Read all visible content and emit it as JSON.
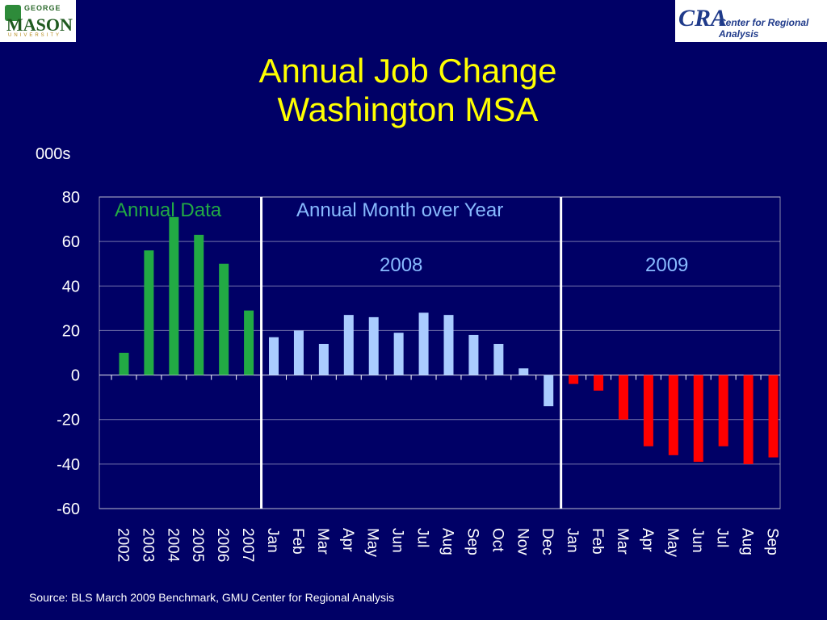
{
  "logos": {
    "left_small": "GEORGE",
    "left_big": "MASON",
    "left_uni": "UNIVERSITY",
    "right_mark": "CRA",
    "right_text": "Center for Regional Analysis"
  },
  "title_line1": "Annual Job Change",
  "title_line2": "Washington MSA",
  "unit_label": "000s",
  "source": "Source: BLS March 2009 Benchmark, GMU Center for Regional Analysis",
  "colors": {
    "annual": "#22aa44",
    "y2008": "#aaccff",
    "y2009": "#ff0000",
    "grid": "#ffffff",
    "text": "#ffffff"
  },
  "chart_data": {
    "type": "bar",
    "ylim": [
      -60,
      80
    ],
    "yticks": [
      80,
      60,
      40,
      20,
      0,
      -20,
      -40,
      -60
    ],
    "categories": [
      "2002",
      "2003",
      "2004",
      "2005",
      "2006",
      "2007",
      "Jan",
      "Feb",
      "Mar",
      "Apr",
      "May",
      "Jun",
      "Jul",
      "Aug",
      "Sep",
      "Oct",
      "Nov",
      "Dec",
      "Jan",
      "Feb",
      "Mar",
      "Apr",
      "May",
      "Jun",
      "Jul",
      "Aug",
      "Sep"
    ],
    "values": [
      10,
      56,
      71,
      63,
      50,
      29,
      17,
      20,
      14,
      27,
      26,
      19,
      28,
      27,
      18,
      14,
      3,
      -14,
      -4,
      -7,
      -20,
      -32,
      -36,
      -39,
      -32,
      -40,
      -37
    ],
    "groups": [
      "annual",
      "annual",
      "annual",
      "annual",
      "annual",
      "annual",
      "y2008",
      "y2008",
      "y2008",
      "y2008",
      "y2008",
      "y2008",
      "y2008",
      "y2008",
      "y2008",
      "y2008",
      "y2008",
      "y2008",
      "y2009",
      "y2009",
      "y2009",
      "y2009",
      "y2009",
      "y2009",
      "y2009",
      "y2009",
      "y2009"
    ],
    "annotations": {
      "annual": "Annual Data",
      "month_over_year": "Annual Month over Year",
      "y2008": "2008",
      "y2009": "2009"
    },
    "grid": true
  }
}
